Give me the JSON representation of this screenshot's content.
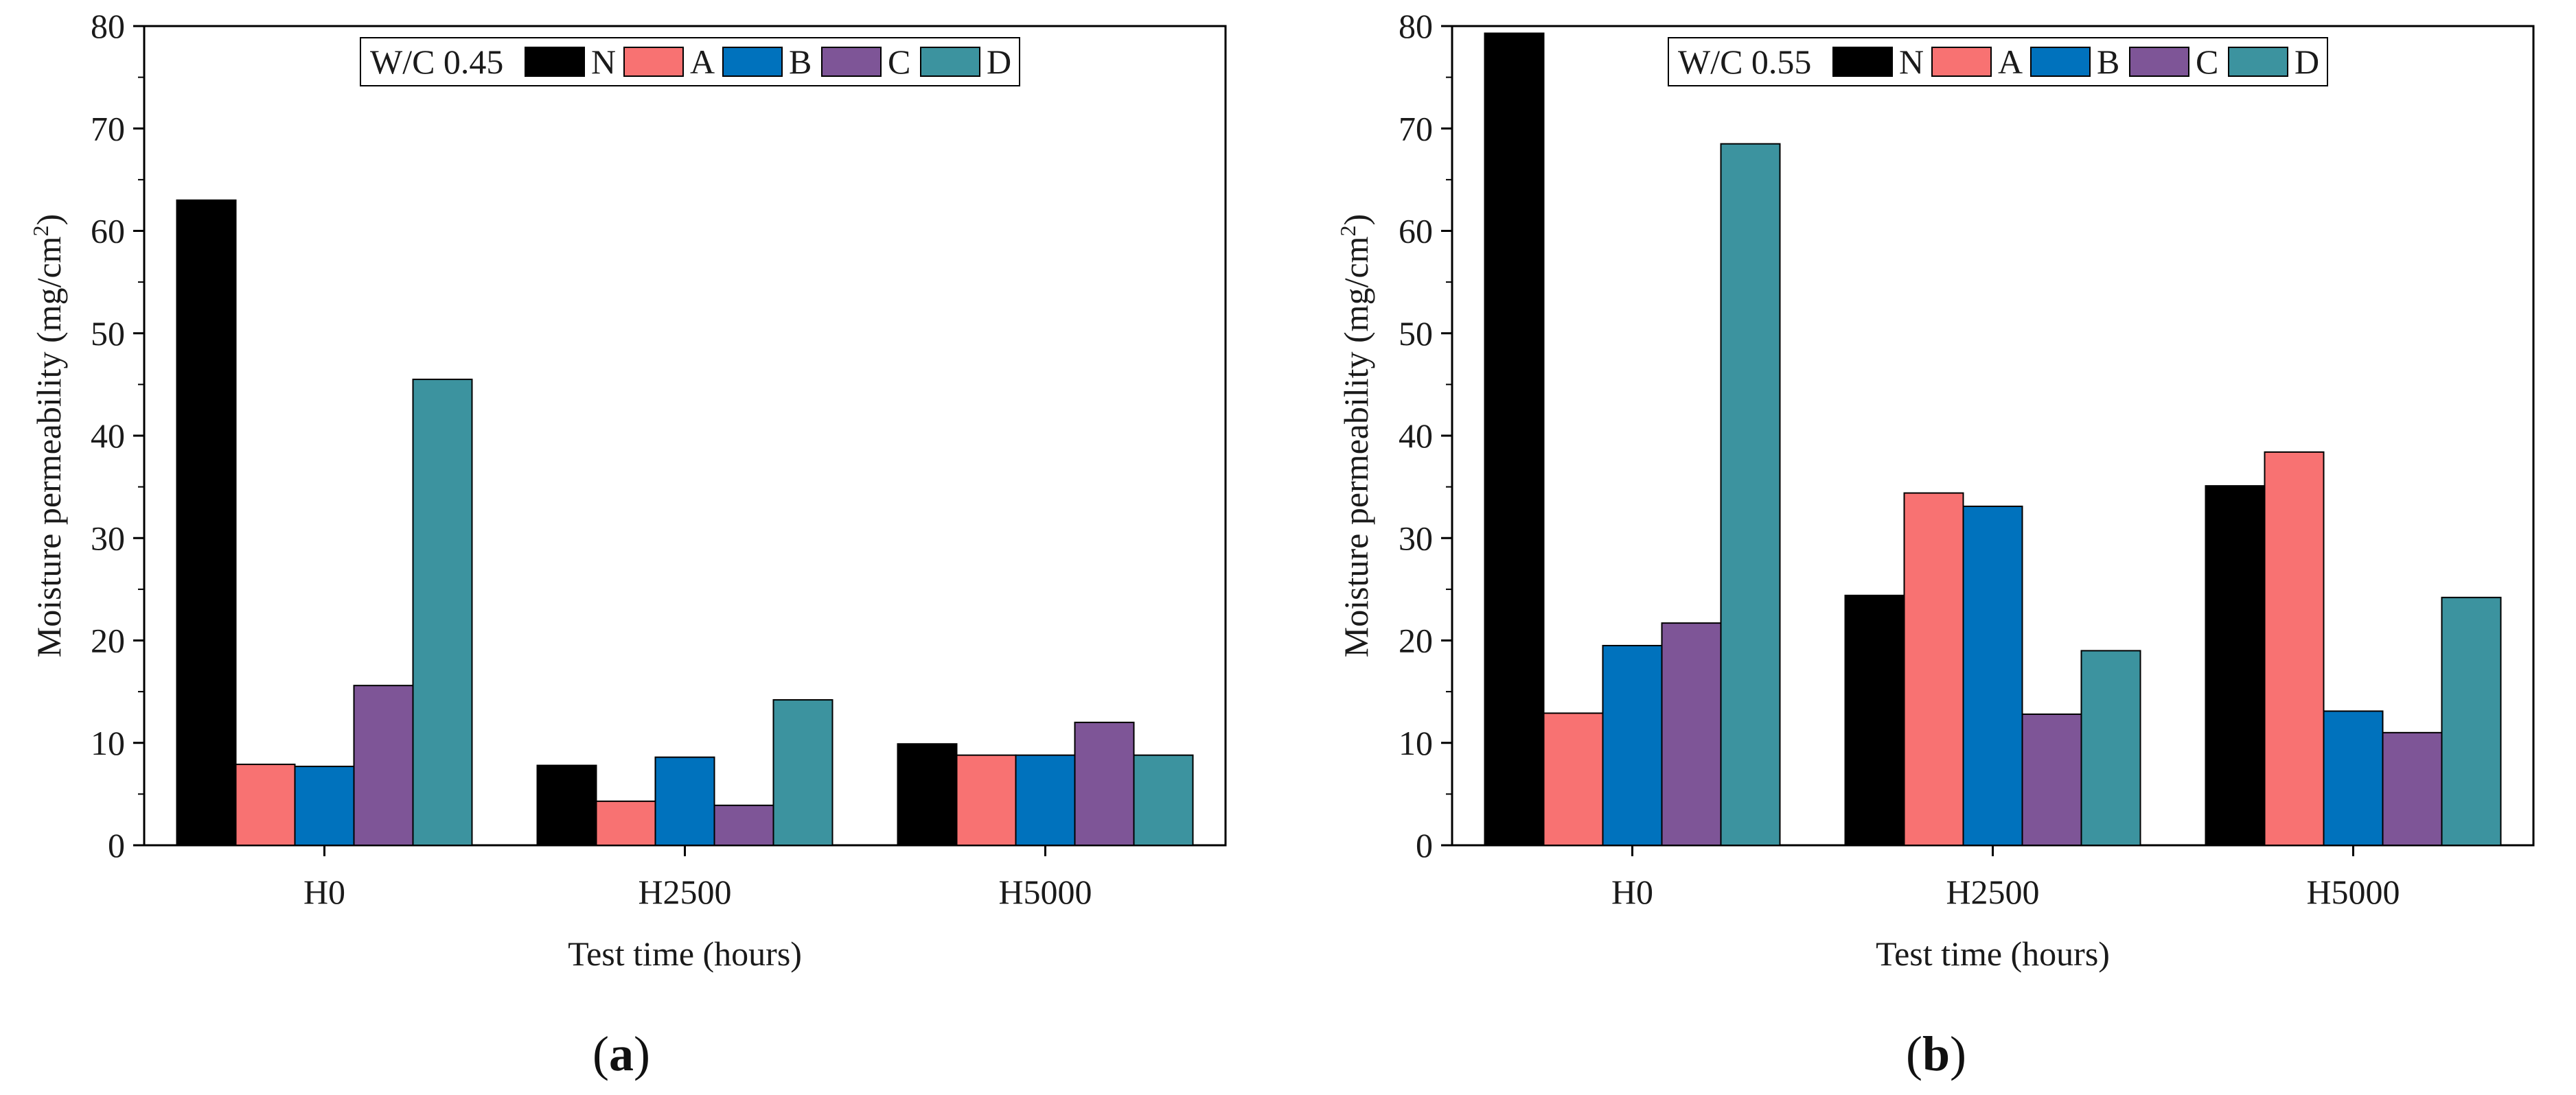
{
  "chart_data": [
    {
      "type": "bar",
      "panel": "a",
      "ylabel_main": "Moisture permeability (mg/cm",
      "ylabel_sup": "2",
      "ylabel_close": ")",
      "xlabel": "Test time (hours)",
      "ylim": [
        0,
        80
      ],
      "yticks": [
        0,
        10,
        20,
        30,
        40,
        50,
        60,
        70,
        80
      ],
      "categories": [
        "H0",
        "H2500",
        "H5000"
      ],
      "legend_title": "W/C 0.45",
      "legend_position": "top",
      "series": [
        {
          "name": "N",
          "color": "#000000",
          "values": [
            63.0,
            7.8,
            9.9
          ]
        },
        {
          "name": "A",
          "color": "#F87272",
          "values": [
            7.9,
            4.3,
            8.8
          ]
        },
        {
          "name": "B",
          "color": "#0072BD",
          "values": [
            7.7,
            8.6,
            8.8
          ]
        },
        {
          "name": "C",
          "color": "#7E5597",
          "values": [
            15.6,
            3.9,
            12.0
          ]
        },
        {
          "name": "D",
          "color": "#3C939F",
          "values": [
            45.5,
            14.2,
            8.8
          ]
        }
      ]
    },
    {
      "type": "bar",
      "panel": "b",
      "ylabel_main": "Moisture permeability (mg/cm",
      "ylabel_sup": "2",
      "ylabel_close": ")",
      "xlabel": "Test time (hours)",
      "ylim": [
        0,
        80
      ],
      "yticks": [
        0,
        10,
        20,
        30,
        40,
        50,
        60,
        70,
        80
      ],
      "categories": [
        "H0",
        "H2500",
        "H5000"
      ],
      "legend_title": "W/C 0.55",
      "legend_position": "top",
      "series": [
        {
          "name": "N",
          "color": "#000000",
          "values": [
            79.3,
            24.4,
            35.1
          ]
        },
        {
          "name": "A",
          "color": "#F87272",
          "values": [
            12.9,
            34.4,
            38.4
          ]
        },
        {
          "name": "B",
          "color": "#0072BD",
          "values": [
            19.5,
            33.1,
            13.1
          ]
        },
        {
          "name": "C",
          "color": "#7E5597",
          "values": [
            21.7,
            12.8,
            11.0
          ]
        },
        {
          "name": "D",
          "color": "#3C939F",
          "values": [
            68.5,
            19.0,
            24.2
          ]
        }
      ]
    }
  ],
  "panel_labels": {
    "a": {
      "open": "(",
      "letter": "a",
      "close": ")"
    },
    "b": {
      "open": "(",
      "letter": "b",
      "close": ")"
    }
  }
}
